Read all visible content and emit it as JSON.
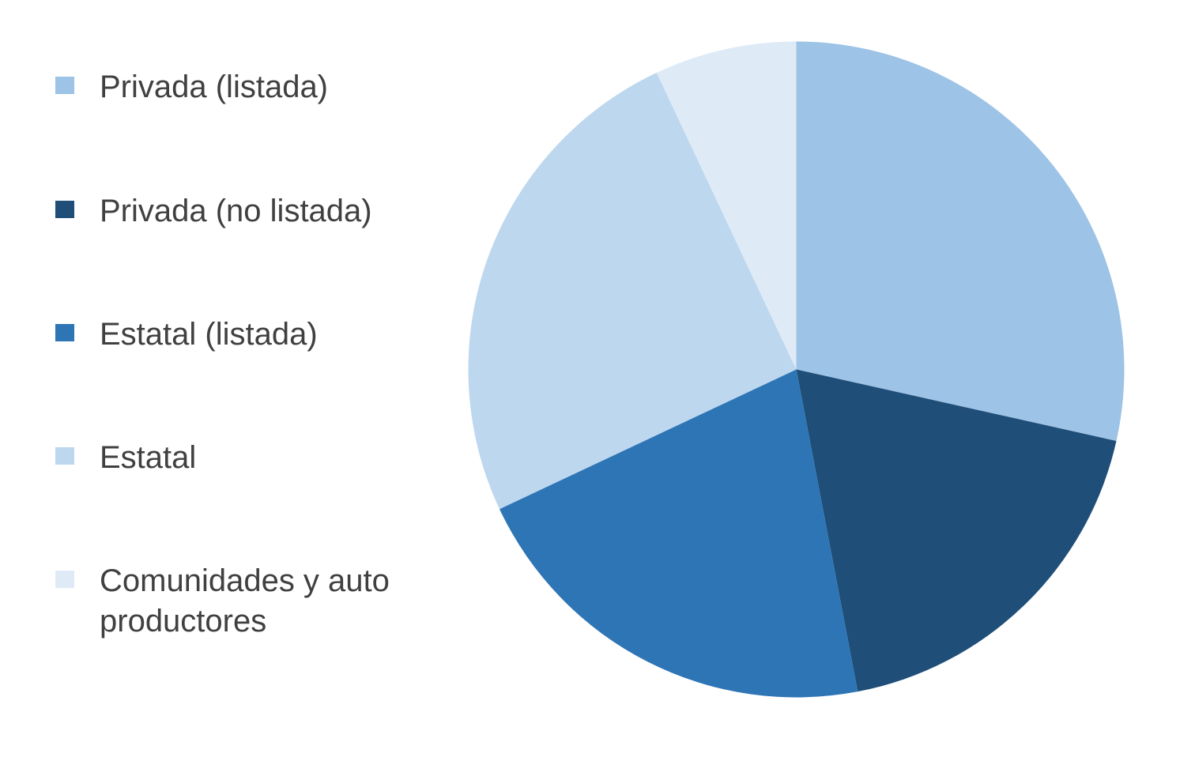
{
  "chart_data": {
    "type": "pie",
    "categories": [
      "Privada (listada)",
      "Privada (no listada)",
      "Estatal (listada)",
      "Estatal",
      "Comunidades y auto\nproductores"
    ],
    "values": [
      28.5,
      18.5,
      21.0,
      25.0,
      7.0
    ],
    "colors": [
      "#9dc3e6",
      "#1f4e79",
      "#2e75b6",
      "#bdd7ee",
      "#deebf7"
    ],
    "title": "",
    "legend": "left"
  }
}
